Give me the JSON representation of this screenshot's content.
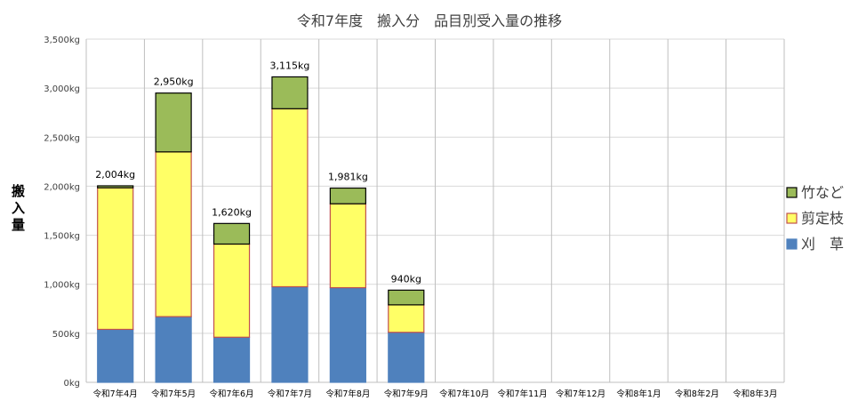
{
  "chart_data": {
    "type": "bar",
    "stacked": true,
    "title": "令和7年度　搬入分　品目別受入量の推移",
    "ylabel": "搬入量",
    "xlabel": "",
    "ylim": [
      0,
      3500
    ],
    "ytick_step": 500,
    "y_tick_labels": [
      "0kg",
      "500kg",
      "1,000kg",
      "1,500kg",
      "2,000kg",
      "2,500kg",
      "3,000kg",
      "3,500kg"
    ],
    "grid": true,
    "legend_position": "right",
    "categories": [
      "令和7年4月",
      "令和7年5月",
      "令和7年6月",
      "令和7年7月",
      "令和7年8月",
      "令和7年9月",
      "令和7年10月",
      "令和7年11月",
      "令和7年12月",
      "令和8年1月",
      "令和8年2月",
      "令和8年3月"
    ],
    "series": [
      {
        "name": "刈　草",
        "color": "#4f81bd",
        "border": "#4f81bd",
        "values": [
          540,
          670,
          460,
          975,
          965,
          510,
          null,
          null,
          null,
          null,
          null,
          null
        ]
      },
      {
        "name": "剪定枝",
        "color": "#ffff66",
        "border": "#c0504d",
        "values": [
          1444,
          1680,
          950,
          1815,
          856,
          280,
          null,
          null,
          null,
          null,
          null,
          null
        ]
      },
      {
        "name": "竹など",
        "color": "#9bbb59",
        "border": "#000000",
        "values": [
          20,
          600,
          210,
          325,
          160,
          150,
          null,
          null,
          null,
          null,
          null,
          null
        ]
      }
    ],
    "totals": [
      "2,004kg",
      "2,950kg",
      "1,620kg",
      "3,115kg",
      "1,981kg",
      "940kg",
      "",
      "",
      "",
      "",
      "",
      ""
    ]
  }
}
